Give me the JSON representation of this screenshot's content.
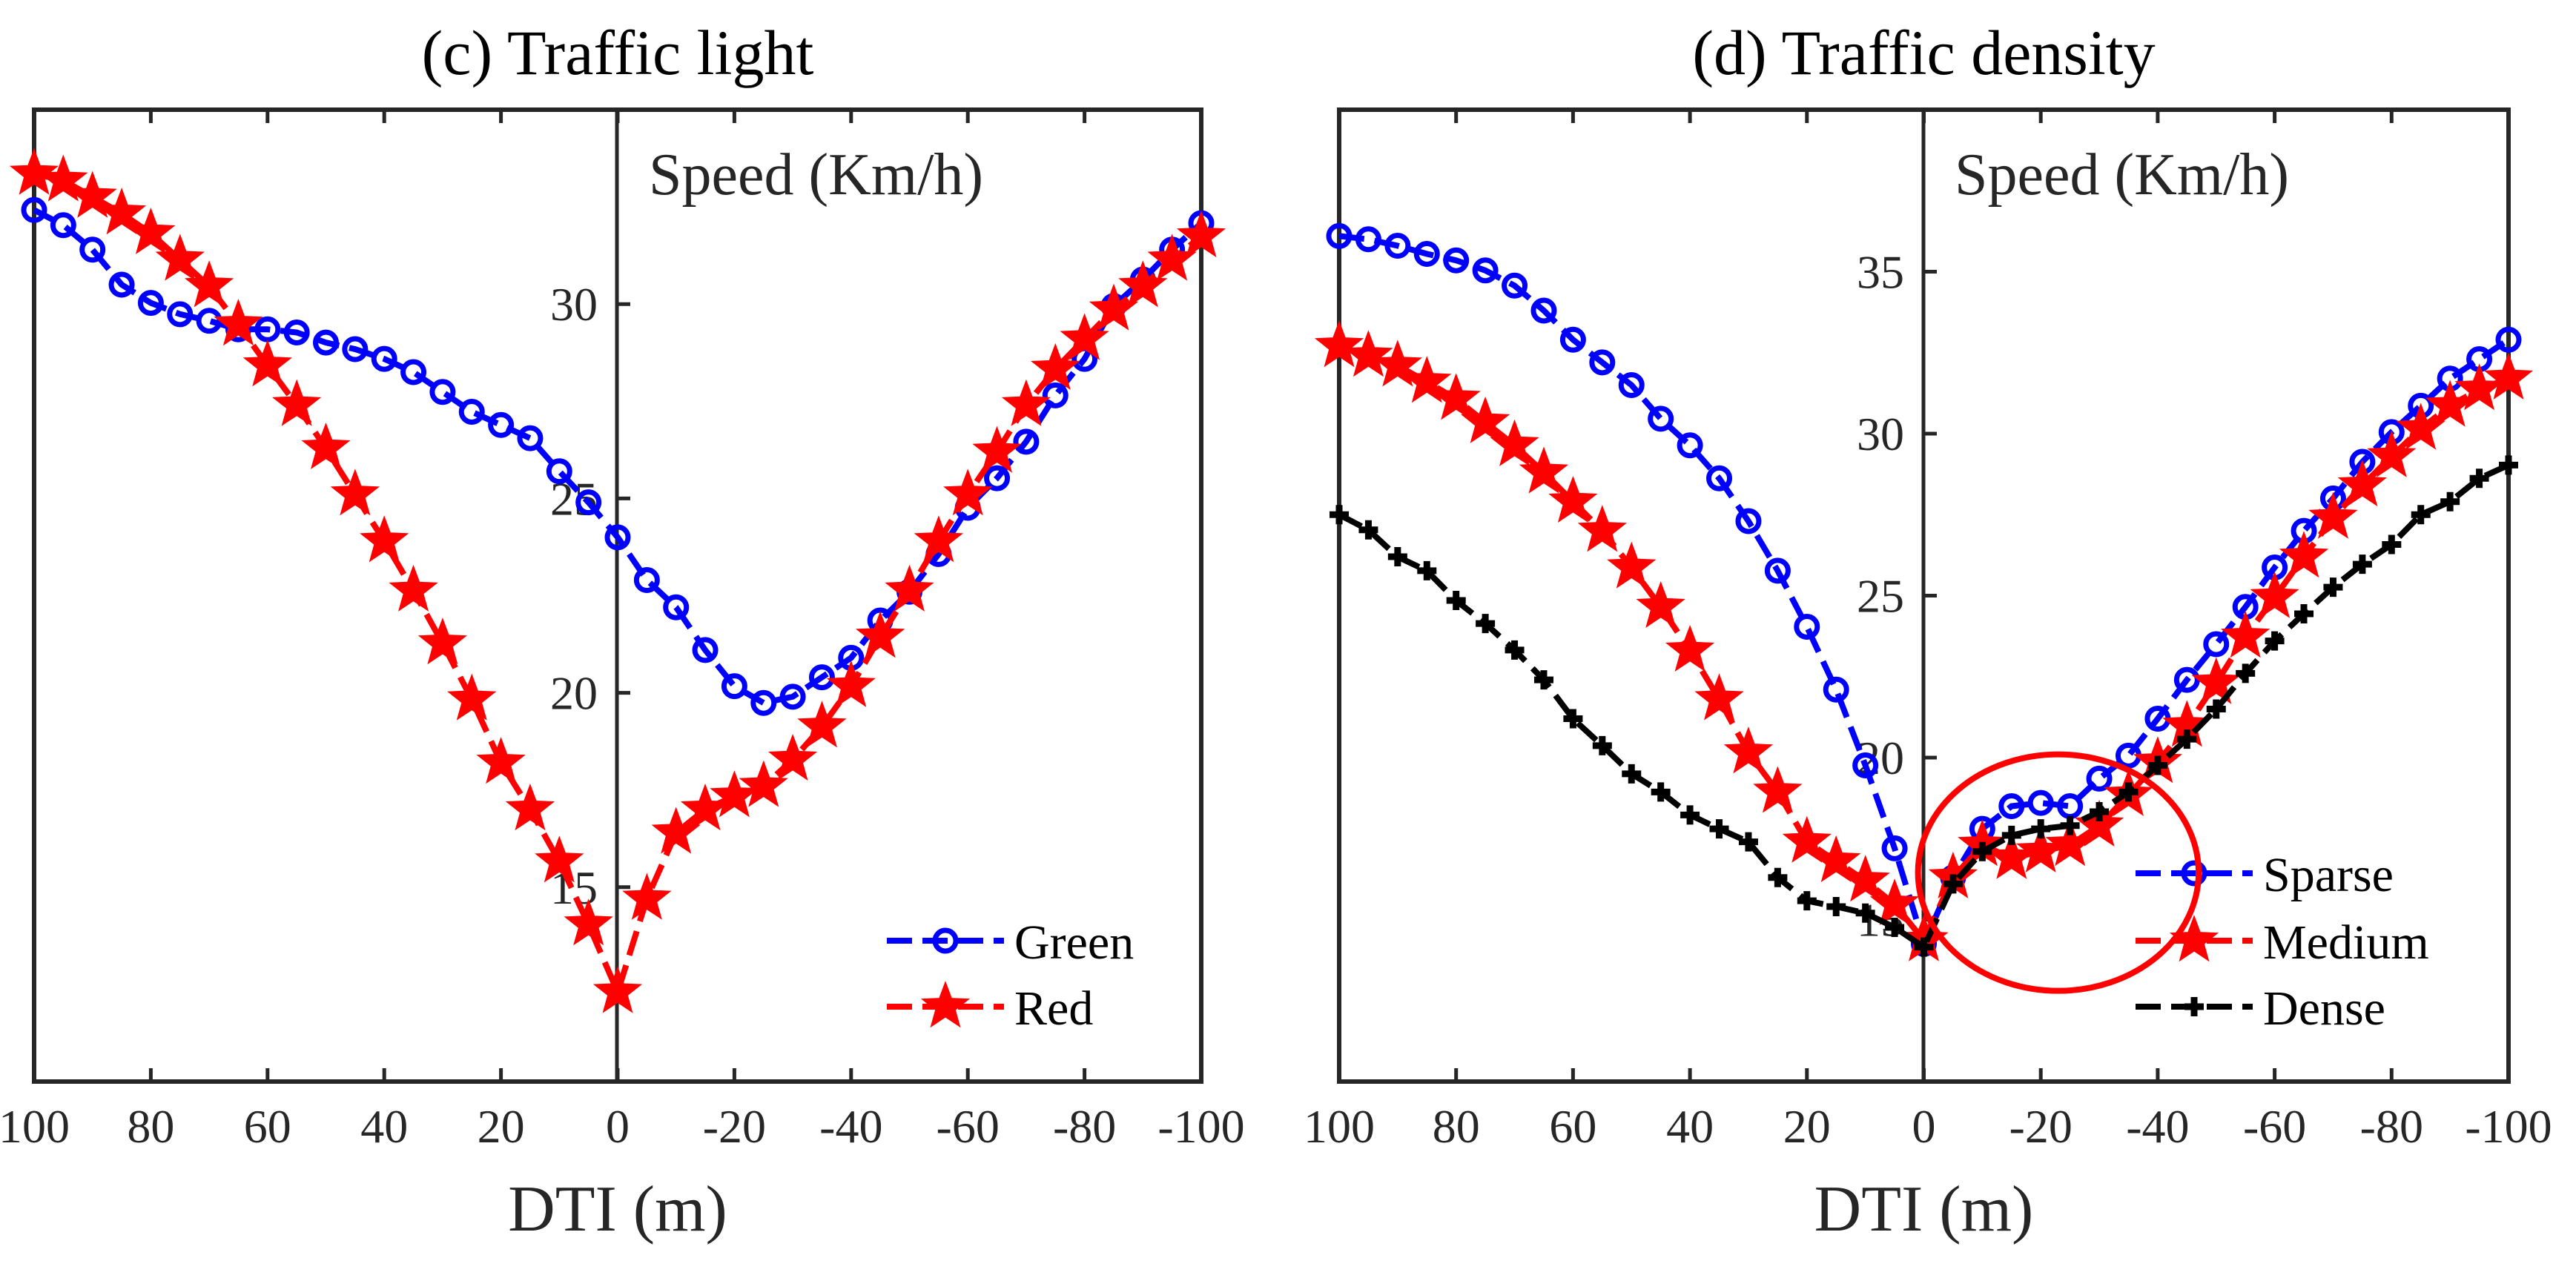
{
  "chart_data": [
    {
      "type": "line",
      "title": "(c) Traffic light",
      "xlabel": "DTI (m)",
      "ylabel": "Speed (Km/h)",
      "xlim": [
        100,
        -100
      ],
      "ylim": [
        10,
        35
      ],
      "xticks": [
        100,
        80,
        60,
        40,
        20,
        0,
        -20,
        -40,
        -60,
        -80,
        -100
      ],
      "xtick_labels": [
        "100",
        "80",
        "60",
        "40",
        "20",
        "0",
        "-20",
        "-40",
        "-60",
        "-80",
        "-100"
      ],
      "yticks": [
        15,
        20,
        25,
        30
      ],
      "ytick_labels": [
        "15",
        "20",
        "25",
        "30"
      ],
      "legend_position": "bottom-right",
      "x": [
        100,
        95,
        90,
        85,
        80,
        75,
        70,
        65,
        60,
        55,
        50,
        45,
        40,
        35,
        30,
        25,
        20,
        15,
        10,
        5,
        0,
        -5,
        -10,
        -15,
        -20,
        -25,
        -30,
        -35,
        -40,
        -45,
        -50,
        -55,
        -60,
        -65,
        -70,
        -75,
        -80,
        -85,
        -90,
        -95,
        -100
      ],
      "series": [
        {
          "name": "Green",
          "color": "#0000ff",
          "marker": "circle",
          "values": [
            32.42,
            32.03,
            31.4,
            30.5,
            30.03,
            29.74,
            29.57,
            29.35,
            29.35,
            29.27,
            29.01,
            28.84,
            28.59,
            28.25,
            27.74,
            27.23,
            26.89,
            26.55,
            25.7,
            24.9,
            24.0,
            22.9,
            22.2,
            21.1,
            20.17,
            19.74,
            19.9,
            20.4,
            20.9,
            21.86,
            22.6,
            23.57,
            24.76,
            25.52,
            26.46,
            27.65,
            28.59,
            29.95,
            30.63,
            31.4,
            32.08
          ]
        },
        {
          "name": "Red",
          "color": "#ff0000",
          "marker": "star",
          "values": [
            33.35,
            33.18,
            32.76,
            32.33,
            31.82,
            31.14,
            30.46,
            29.47,
            28.42,
            27.4,
            26.29,
            25.1,
            23.9,
            22.63,
            21.27,
            19.83,
            18.2,
            17.0,
            15.66,
            14.04,
            12.3,
            14.7,
            16.4,
            17.0,
            17.34,
            17.6,
            18.28,
            19.13,
            20.17,
            21.44,
            22.63,
            23.9,
            25.1,
            26.2,
            27.4,
            28.33,
            29.1,
            29.86,
            30.46,
            31.14,
            31.74
          ]
        }
      ]
    },
    {
      "type": "line",
      "title": "(d) Traffic density",
      "xlabel": "DTI (m)",
      "ylabel": "Speed (Km/h)",
      "xlim": [
        100,
        -100
      ],
      "ylim": [
        10,
        40
      ],
      "xticks": [
        100,
        80,
        60,
        40,
        20,
        0,
        -20,
        -40,
        -60,
        -80,
        -100
      ],
      "xtick_labels": [
        "100",
        "80",
        "60",
        "40",
        "20",
        "0",
        "-20",
        "-40",
        "-60",
        "-80",
        "-100"
      ],
      "yticks": [
        15,
        20,
        25,
        30,
        35
      ],
      "ytick_labels": [
        "15",
        "20",
        "25",
        "30",
        "35"
      ],
      "legend_position": "bottom-right",
      "annotation": {
        "type": "ellipse",
        "color": "#ff0000",
        "cx": -23,
        "cy": 16.45,
        "rx": 24,
        "ry": 3.65
      },
      "x": [
        100,
        95,
        90,
        85,
        80,
        75,
        70,
        65,
        60,
        55,
        50,
        45,
        40,
        35,
        30,
        25,
        20,
        15,
        10,
        5,
        0,
        -5,
        -10,
        -15,
        -20,
        -25,
        -30,
        -35,
        -40,
        -45,
        -50,
        -55,
        -60,
        -65,
        -70,
        -75,
        -80,
        -85,
        -90,
        -95,
        -100
      ],
      "series": [
        {
          "name": "Sparse",
          "color": "#0000ff",
          "marker": "circle",
          "values": [
            36.1,
            36.0,
            35.8,
            35.55,
            35.35,
            35.04,
            34.57,
            33.8,
            32.9,
            32.2,
            31.5,
            30.46,
            29.64,
            28.62,
            27.3,
            25.77,
            24.04,
            22.1,
            19.76,
            17.2,
            14.25,
            16.3,
            17.8,
            18.5,
            18.6,
            18.5,
            19.35,
            20.06,
            21.2,
            22.4,
            23.5,
            24.65,
            25.87,
            27.0,
            28.0,
            29.13,
            30.05,
            30.86,
            31.7,
            32.3,
            32.9
          ]
        },
        {
          "name": "Medium",
          "color": "#ff0000",
          "marker": "star",
          "values": [
            32.7,
            32.4,
            32.1,
            31.6,
            31.07,
            30.35,
            29.64,
            28.8,
            27.9,
            27.0,
            25.87,
            24.65,
            23.3,
            21.8,
            20.16,
            18.94,
            17.4,
            16.8,
            16.2,
            15.47,
            14.36,
            16.3,
            17.3,
            16.9,
            17.1,
            17.3,
            17.9,
            18.84,
            19.86,
            20.98,
            22.3,
            23.73,
            24.95,
            26.2,
            27.4,
            28.4,
            29.3,
            30.15,
            30.86,
            31.37,
            31.7
          ]
        },
        {
          "name": "Dense",
          "color": "#000000",
          "marker": "plus",
          "values": [
            27.5,
            27.03,
            26.2,
            25.77,
            24.85,
            24.14,
            23.32,
            22.4,
            21.2,
            20.37,
            19.5,
            18.94,
            18.23,
            17.8,
            17.4,
            16.3,
            15.58,
            15.4,
            15.2,
            14.76,
            14.15,
            16.1,
            17.1,
            17.6,
            17.8,
            17.9,
            18.33,
            18.94,
            19.76,
            20.57,
            21.5,
            22.6,
            23.6,
            24.44,
            25.26,
            25.97,
            26.58,
            27.5,
            27.9,
            28.62,
            29.03
          ]
        }
      ]
    }
  ]
}
